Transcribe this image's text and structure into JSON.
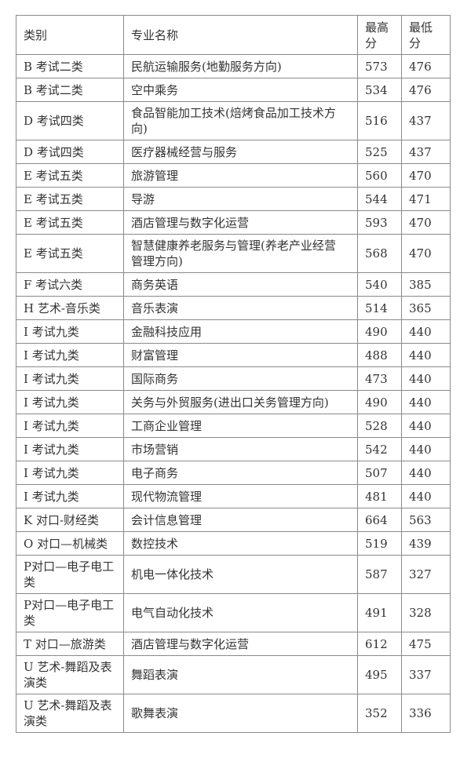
{
  "table": {
    "headers": [
      "类别",
      "专业名称",
      "最高\n分",
      "最低\n分"
    ],
    "rows": [
      [
        "B 考试二类",
        "民航运输服务(地勤服务方向)",
        "573",
        "476"
      ],
      [
        "B 考试二类",
        "空中乘务",
        "534",
        "476"
      ],
      [
        "D 考试四类",
        "食品智能加工技术(焙烤食品加工技术方\n向)",
        "516",
        "437"
      ],
      [
        "D 考试四类",
        "医疗器械经营与服务",
        "525",
        "437"
      ],
      [
        "E 考试五类",
        "旅游管理",
        "560",
        "470"
      ],
      [
        "E 考试五类",
        "导游",
        "544",
        "471"
      ],
      [
        "E 考试五类",
        "酒店管理与数字化运营",
        "593",
        "470"
      ],
      [
        "E 考试五类",
        "智慧健康养老服务与管理(养老产业经营\n管理方向)",
        "568",
        "470"
      ],
      [
        "F 考试六类",
        "商务英语",
        "540",
        "385"
      ],
      [
        "H 艺术-音乐类",
        "音乐表演",
        "514",
        "365"
      ],
      [
        "I 考试九类",
        "金融科技应用",
        "490",
        "440"
      ],
      [
        "I 考试九类",
        "财富管理",
        "488",
        "440"
      ],
      [
        "I 考试九类",
        "国际商务",
        "473",
        "440"
      ],
      [
        "I 考试九类",
        "关务与外贸服务(进出口关务管理方向)",
        "490",
        "440"
      ],
      [
        "I 考试九类",
        "工商企业管理",
        "528",
        "440"
      ],
      [
        "I 考试九类",
        "市场营销",
        "542",
        "440"
      ],
      [
        "I 考试九类",
        "电子商务",
        "507",
        "440"
      ],
      [
        "I 考试九类",
        "现代物流管理",
        "481",
        "440"
      ],
      [
        "K 对口-财经类",
        "会计信息管理",
        "664",
        "563"
      ],
      [
        "O 对口—机械类",
        "数控技术",
        "519",
        "439"
      ],
      [
        "P对口—电子电工\n类",
        "机电一体化技术",
        "587",
        "327"
      ],
      [
        "P对口—电子电工\n类",
        "电气自动化技术",
        "491",
        "328"
      ],
      [
        "T 对口—旅游类",
        "酒店管理与数字化运营",
        "612",
        "475"
      ],
      [
        "U 艺术-舞蹈及表\n演类",
        "舞蹈表演",
        "495",
        "337"
      ],
      [
        "U 艺术-舞蹈及表\n演类",
        "歌舞表演",
        "352",
        "336"
      ]
    ]
  }
}
